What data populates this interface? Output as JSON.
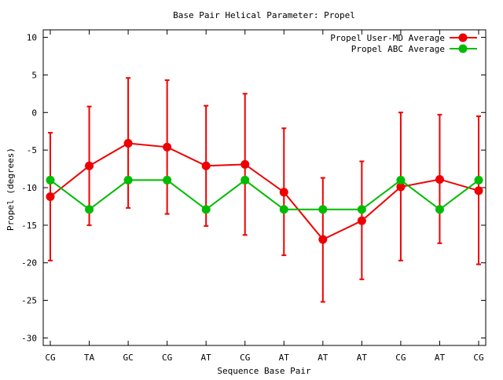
{
  "chart_data": {
    "type": "line",
    "title": "Base Pair Helical Parameter: Propel",
    "xlabel": "Sequence Base Pair",
    "ylabel": "Propel (degrees)",
    "categories": [
      "CG",
      "TA",
      "GC",
      "CG",
      "AT",
      "CG",
      "AT",
      "AT",
      "AT",
      "CG",
      "AT",
      "CG"
    ],
    "ylim": [
      -31,
      11
    ],
    "yticks": [
      10,
      5,
      0,
      -5,
      -10,
      -15,
      -20,
      -25,
      -30
    ],
    "ytick_labels": [
      "10",
      "5",
      "0",
      "-5",
      "-10",
      "-15",
      "-20",
      "-25",
      "-30"
    ],
    "grid": false,
    "legend_position": "top-right",
    "series": [
      {
        "name": "Propel User-MD Average",
        "color": "#ee0000",
        "values": [
          -11.2,
          -7.1,
          -4.1,
          -4.6,
          -7.1,
          -6.9,
          -10.6,
          -16.9,
          -14.4,
          -9.9,
          -8.9,
          -10.4
        ],
        "error_low": [
          -19.7,
          -15.0,
          -12.7,
          -13.5,
          -15.1,
          -16.3,
          -19.0,
          -25.2,
          -22.2,
          -19.7,
          -17.4,
          -20.2
        ],
        "error_high": [
          -2.7,
          0.8,
          4.6,
          4.3,
          0.9,
          2.5,
          -2.1,
          -8.7,
          -6.5,
          0.0,
          -0.3,
          -0.5
        ]
      },
      {
        "name": "Propel ABC Average",
        "color": "#00bb00",
        "values": [
          -9.0,
          -12.9,
          -9.0,
          -9.0,
          -12.9,
          -9.0,
          -12.9,
          -12.9,
          -12.9,
          -9.0,
          -12.9,
          -9.0
        ]
      }
    ]
  }
}
